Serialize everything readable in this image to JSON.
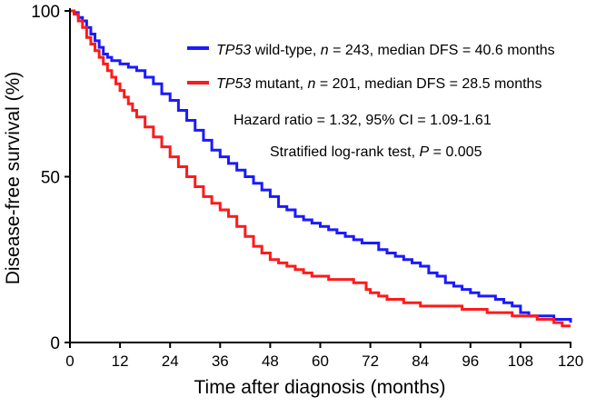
{
  "chart_data": {
    "type": "line",
    "xlabel": "Time after diagnosis (months)",
    "ylabel": "Disease-free survival (%)",
    "xlim": [
      0,
      120
    ],
    "ylim": [
      0,
      100
    ],
    "x_ticks": [
      0,
      12,
      24,
      36,
      48,
      60,
      72,
      84,
      96,
      108,
      120
    ],
    "y_ticks": [
      0,
      50,
      100
    ],
    "grid": false,
    "legend_position": "top-right",
    "series": [
      {
        "name": "TP53 wild-type, n = 243, median DFS = 40.6 months",
        "legend_italic": "TP53",
        "legend_n": "243",
        "legend_median": "40.6",
        "color": "#1a1aff",
        "step": true,
        "x": [
          0,
          1,
          2,
          3,
          4,
          5,
          6,
          7,
          8,
          9,
          10,
          12,
          14,
          16,
          18,
          20,
          22,
          24,
          26,
          28,
          30,
          32,
          34,
          36,
          38,
          40,
          42,
          44,
          46,
          48,
          50,
          52,
          54,
          56,
          58,
          60,
          62,
          64,
          66,
          68,
          70,
          72,
          74,
          76,
          78,
          80,
          82,
          84,
          86,
          88,
          90,
          92,
          94,
          96,
          98,
          100,
          102,
          104,
          106,
          108,
          110,
          112,
          114,
          116,
          118,
          120
        ],
        "y": [
          100,
          99.5,
          98,
          97,
          95,
          93,
          91,
          89,
          87,
          86,
          85,
          84,
          83,
          82,
          80,
          78,
          75,
          73,
          70,
          67,
          64,
          61,
          58,
          56,
          54,
          52,
          50,
          48,
          46,
          44,
          41,
          40,
          38,
          37,
          36,
          35,
          34,
          33,
          32,
          31,
          30,
          30,
          28,
          27,
          26,
          25,
          24,
          23,
          21,
          20,
          18,
          17,
          16,
          15,
          14,
          14,
          13,
          12,
          11,
          9,
          8,
          8,
          8,
          7,
          7,
          6
        ]
      },
      {
        "name": "TP53 mutant, n = 201, median DFS = 28.5 months",
        "legend_italic": "TP53",
        "legend_n": "201",
        "legend_median": "28.5",
        "color": "#ff1a1a",
        "step": true,
        "x": [
          0,
          1,
          2,
          3,
          4,
          5,
          6,
          7,
          8,
          9,
          10,
          11,
          12,
          13,
          14,
          15,
          16,
          18,
          20,
          22,
          24,
          26,
          28,
          30,
          32,
          34,
          36,
          38,
          40,
          42,
          44,
          46,
          48,
          50,
          52,
          54,
          56,
          58,
          60,
          62,
          64,
          66,
          68,
          70,
          71,
          72,
          74,
          76,
          78,
          80,
          82,
          84,
          86,
          88,
          90,
          92,
          94,
          96,
          98,
          100,
          102,
          104,
          106,
          108,
          110,
          112,
          114,
          116,
          118,
          120
        ],
        "y": [
          100,
          99,
          97,
          95,
          92,
          90,
          88,
          86,
          84,
          82,
          80,
          78,
          76,
          74,
          72,
          70,
          68,
          65,
          62,
          59,
          56,
          53,
          50,
          47,
          44,
          42,
          40,
          38,
          35,
          32,
          29,
          27,
          25,
          24,
          23,
          22,
          21,
          20,
          20,
          19,
          19,
          19,
          18,
          18,
          16,
          15,
          14,
          13,
          13,
          12,
          12,
          11,
          11,
          11,
          11,
          11,
          10,
          10,
          10,
          9,
          9,
          9,
          8,
          8,
          8,
          7,
          7,
          6,
          5,
          5
        ]
      }
    ],
    "annotations": {
      "hazard_ratio_text": "Hazard ratio = 1.32, 95% CI = 1.09-1.61",
      "logrank_prefix": "Stratified log-rank test,",
      "logrank_p_value": "0.005"
    }
  }
}
